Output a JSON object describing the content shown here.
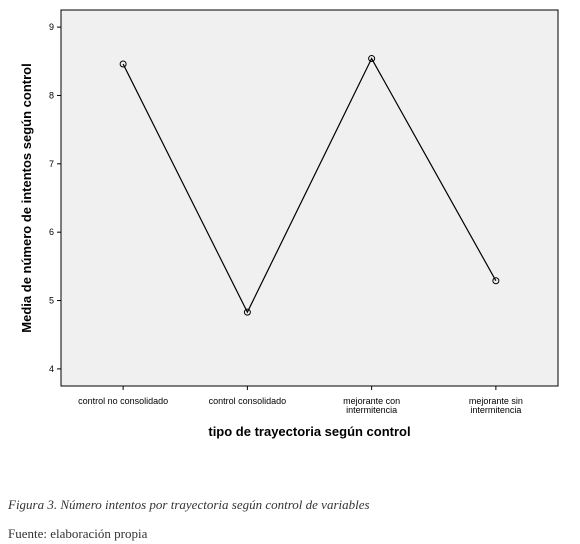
{
  "chart_data": {
    "type": "line",
    "categories": [
      [
        "control no consolidado"
      ],
      [
        "control consolidado"
      ],
      [
        "mejorante con",
        "intermitencia"
      ],
      [
        "mejorante sin",
        "intermitencia"
      ]
    ],
    "values": [
      8.46,
      4.83,
      8.54,
      5.29
    ],
    "xlabel": "tipo de trayectoria según control",
    "ylabel": "Media de número de intentos según control",
    "ylim": [
      3.75,
      9.25
    ],
    "yticks": [
      4,
      5,
      6,
      7,
      8,
      9
    ],
    "markers": "open-circle",
    "grid": false,
    "colors": {
      "plot_background": "#f0f0f0",
      "line": "#000000",
      "frame": "#000000"
    }
  },
  "caption": {
    "figure": "Figura 3. Número intentos por trayectoria según control de variables",
    "source": "Fuente: elaboración propia"
  }
}
